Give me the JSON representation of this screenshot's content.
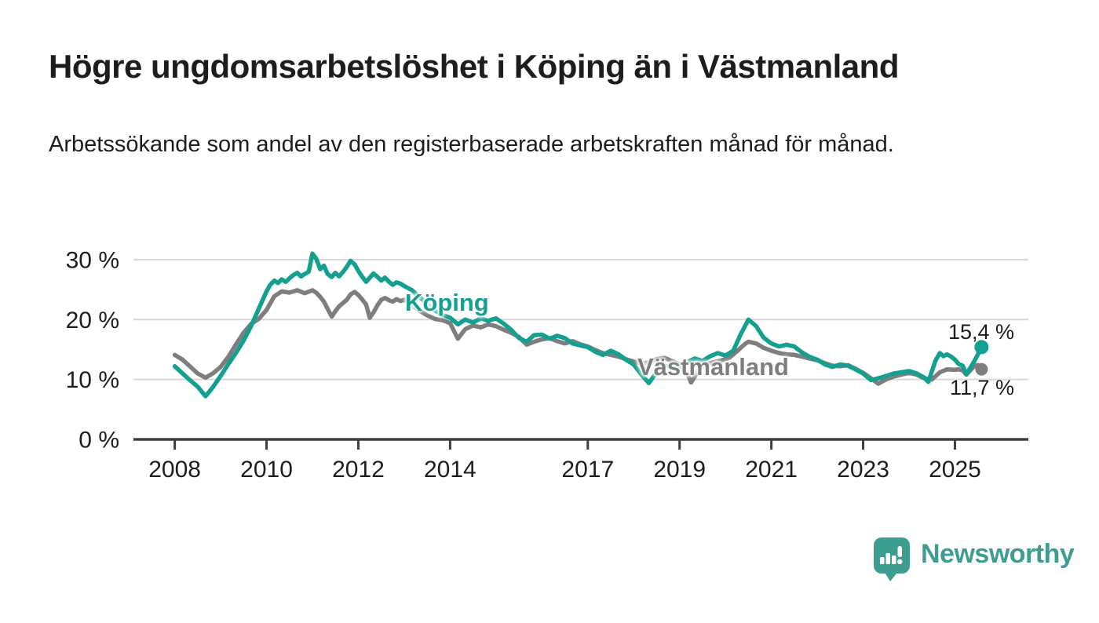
{
  "title": "Högre ungdomsarbetslöshet i Köping än i Västmanland",
  "subtitle": "Arbetssökande som andel av den registerbaserade arbetskraften månad för månad.",
  "logo": {
    "text": "Newsworthy"
  },
  "chart_data": {
    "type": "line",
    "unit": "%",
    "title": "Högre ungdomsarbetslöshet i Köping än i Västmanland",
    "xlabel": "",
    "ylabel": "Arbetssökande som andel av den registerbaserade arbetskraften",
    "x_axis": {
      "ticks": [
        2008,
        2010,
        2012,
        2014,
        2017,
        2019,
        2021,
        2023,
        2025
      ],
      "xlim": [
        2007.1,
        2026.6
      ]
    },
    "y_axis": {
      "ticks": [
        0,
        10,
        20,
        30
      ],
      "tick_labels": [
        "0 %",
        "10 %",
        "20 %",
        "30 %"
      ],
      "ylim": [
        0,
        33
      ],
      "grid": true
    },
    "legend_position": "inline-labels",
    "colors": {
      "koping": "#14A090",
      "vastmanland": "#7E7E7E",
      "grid": "#D8D8D8",
      "axis": "#3F3F3F",
      "ink": "#1D1D1D",
      "logo_teal": "#3D9D90"
    },
    "series": [
      {
        "name": "Västmanland",
        "color_key": "vastmanland",
        "end_label": "11,7 %",
        "last_value": 11.7,
        "points": [
          [
            2008.0,
            14.1
          ],
          [
            2008.17,
            13.3
          ],
          [
            2008.33,
            12.2
          ],
          [
            2008.5,
            11.0
          ],
          [
            2008.67,
            10.3
          ],
          [
            2008.83,
            11.0
          ],
          [
            2009.0,
            12.1
          ],
          [
            2009.17,
            13.8
          ],
          [
            2009.33,
            15.8
          ],
          [
            2009.5,
            17.8
          ],
          [
            2009.67,
            19.3
          ],
          [
            2009.83,
            20.1
          ],
          [
            2010.0,
            21.6
          ],
          [
            2010.17,
            23.9
          ],
          [
            2010.33,
            24.7
          ],
          [
            2010.5,
            24.5
          ],
          [
            2010.67,
            24.9
          ],
          [
            2010.83,
            24.4
          ],
          [
            2011.0,
            24.9
          ],
          [
            2011.08,
            24.5
          ],
          [
            2011.17,
            23.8
          ],
          [
            2011.25,
            23.0
          ],
          [
            2011.33,
            21.8
          ],
          [
            2011.42,
            20.5
          ],
          [
            2011.5,
            21.4
          ],
          [
            2011.58,
            22.2
          ],
          [
            2011.67,
            22.8
          ],
          [
            2011.75,
            23.3
          ],
          [
            2011.83,
            24.2
          ],
          [
            2011.92,
            24.6
          ],
          [
            2012.0,
            24.1
          ],
          [
            2012.08,
            23.4
          ],
          [
            2012.17,
            22.5
          ],
          [
            2012.25,
            20.3
          ],
          [
            2012.33,
            21.2
          ],
          [
            2012.42,
            22.4
          ],
          [
            2012.5,
            23.3
          ],
          [
            2012.58,
            23.6
          ],
          [
            2012.67,
            23.2
          ],
          [
            2012.75,
            23.0
          ],
          [
            2012.83,
            23.4
          ],
          [
            2012.92,
            23.1
          ],
          [
            2013.0,
            23.3
          ],
          [
            2013.17,
            22.4
          ],
          [
            2013.33,
            21.5
          ],
          [
            2013.5,
            20.7
          ],
          [
            2013.67,
            20.1
          ],
          [
            2013.83,
            19.9
          ],
          [
            2014.0,
            19.4
          ],
          [
            2014.17,
            16.8
          ],
          [
            2014.33,
            18.4
          ],
          [
            2014.5,
            19.0
          ],
          [
            2014.67,
            18.7
          ],
          [
            2014.83,
            19.2
          ],
          [
            2015.0,
            18.9
          ],
          [
            2015.17,
            18.3
          ],
          [
            2015.33,
            17.8
          ],
          [
            2015.5,
            17.1
          ],
          [
            2015.67,
            15.8
          ],
          [
            2015.83,
            16.3
          ],
          [
            2016.0,
            16.7
          ],
          [
            2016.17,
            16.9
          ],
          [
            2016.33,
            16.4
          ],
          [
            2016.5,
            16.0
          ],
          [
            2016.67,
            16.4
          ],
          [
            2016.83,
            15.9
          ],
          [
            2017.0,
            15.5
          ],
          [
            2017.17,
            14.9
          ],
          [
            2017.33,
            14.4
          ],
          [
            2017.5,
            14.1
          ],
          [
            2017.67,
            13.8
          ],
          [
            2017.83,
            13.4
          ],
          [
            2018.0,
            13.0
          ],
          [
            2018.17,
            12.6
          ],
          [
            2018.33,
            12.9
          ],
          [
            2018.5,
            13.4
          ],
          [
            2018.67,
            13.6
          ],
          [
            2018.83,
            13.1
          ],
          [
            2019.0,
            12.5
          ],
          [
            2019.17,
            11.0
          ],
          [
            2019.25,
            9.5
          ],
          [
            2019.42,
            11.6
          ],
          [
            2019.58,
            12.5
          ],
          [
            2019.75,
            12.9
          ],
          [
            2019.92,
            13.2
          ],
          [
            2020.08,
            13.6
          ],
          [
            2020.25,
            14.7
          ],
          [
            2020.42,
            15.9
          ],
          [
            2020.5,
            16.3
          ],
          [
            2020.67,
            16.0
          ],
          [
            2020.83,
            15.3
          ],
          [
            2021.0,
            14.8
          ],
          [
            2021.17,
            14.4
          ],
          [
            2021.33,
            14.2
          ],
          [
            2021.5,
            14.1
          ],
          [
            2021.67,
            13.8
          ],
          [
            2021.83,
            13.5
          ],
          [
            2022.0,
            13.2
          ],
          [
            2022.17,
            12.7
          ],
          [
            2022.33,
            12.3
          ],
          [
            2022.5,
            12.2
          ],
          [
            2022.67,
            12.4
          ],
          [
            2022.83,
            11.8
          ],
          [
            2023.0,
            11.1
          ],
          [
            2023.17,
            10.2
          ],
          [
            2023.33,
            9.3
          ],
          [
            2023.5,
            10.0
          ],
          [
            2023.67,
            10.5
          ],
          [
            2023.83,
            10.8
          ],
          [
            2024.0,
            11.1
          ],
          [
            2024.17,
            10.8
          ],
          [
            2024.33,
            10.2
          ],
          [
            2024.5,
            10.0
          ],
          [
            2024.67,
            11.2
          ],
          [
            2024.83,
            11.7
          ],
          [
            2025.0,
            11.6
          ],
          [
            2025.08,
            11.7
          ],
          [
            2025.17,
            11.5
          ],
          [
            2025.25,
            10.8
          ],
          [
            2025.42,
            12.2
          ],
          [
            2025.5,
            12.4
          ],
          [
            2025.58,
            11.7
          ]
        ]
      },
      {
        "name": "Köping",
        "color_key": "koping",
        "end_label": "15,4 %",
        "last_value": 15.4,
        "points": [
          [
            2008.0,
            12.2
          ],
          [
            2008.17,
            11.0
          ],
          [
            2008.33,
            9.9
          ],
          [
            2008.5,
            8.8
          ],
          [
            2008.67,
            7.2
          ],
          [
            2008.83,
            8.7
          ],
          [
            2009.0,
            10.6
          ],
          [
            2009.17,
            12.6
          ],
          [
            2009.33,
            14.4
          ],
          [
            2009.5,
            16.5
          ],
          [
            2009.67,
            19.0
          ],
          [
            2009.83,
            21.8
          ],
          [
            2010.0,
            24.7
          ],
          [
            2010.08,
            25.8
          ],
          [
            2010.17,
            26.5
          ],
          [
            2010.25,
            26.1
          ],
          [
            2010.33,
            26.7
          ],
          [
            2010.42,
            26.3
          ],
          [
            2010.5,
            26.9
          ],
          [
            2010.58,
            27.4
          ],
          [
            2010.67,
            27.8
          ],
          [
            2010.75,
            27.2
          ],
          [
            2010.83,
            27.6
          ],
          [
            2010.92,
            28.0
          ],
          [
            2011.0,
            31.0
          ],
          [
            2011.08,
            30.2
          ],
          [
            2011.17,
            28.4
          ],
          [
            2011.25,
            29.0
          ],
          [
            2011.33,
            27.6
          ],
          [
            2011.42,
            27.1
          ],
          [
            2011.5,
            27.8
          ],
          [
            2011.58,
            27.2
          ],
          [
            2011.67,
            28.0
          ],
          [
            2011.75,
            28.8
          ],
          [
            2011.83,
            29.8
          ],
          [
            2011.92,
            29.2
          ],
          [
            2012.0,
            28.1
          ],
          [
            2012.08,
            27.2
          ],
          [
            2012.17,
            26.3
          ],
          [
            2012.25,
            27.0
          ],
          [
            2012.33,
            27.7
          ],
          [
            2012.42,
            27.1
          ],
          [
            2012.5,
            26.5
          ],
          [
            2012.58,
            27.0
          ],
          [
            2012.67,
            26.3
          ],
          [
            2012.75,
            25.8
          ],
          [
            2012.83,
            26.2
          ],
          [
            2012.92,
            26.0
          ],
          [
            2013.0,
            25.6
          ],
          [
            2013.17,
            24.9
          ],
          [
            2013.33,
            23.8
          ],
          [
            2013.5,
            22.6
          ],
          [
            2013.67,
            21.5
          ],
          [
            2013.83,
            20.8
          ],
          [
            2014.0,
            20.3
          ],
          [
            2014.17,
            19.2
          ],
          [
            2014.33,
            20.0
          ],
          [
            2014.5,
            19.5
          ],
          [
            2014.67,
            20.2
          ],
          [
            2014.83,
            19.8
          ],
          [
            2015.0,
            20.2
          ],
          [
            2015.17,
            19.3
          ],
          [
            2015.33,
            18.3
          ],
          [
            2015.5,
            16.9
          ],
          [
            2015.67,
            16.3
          ],
          [
            2015.83,
            17.4
          ],
          [
            2016.0,
            17.5
          ],
          [
            2016.17,
            16.8
          ],
          [
            2016.33,
            17.3
          ],
          [
            2016.5,
            16.9
          ],
          [
            2016.67,
            16.0
          ],
          [
            2016.83,
            15.7
          ],
          [
            2017.0,
            15.4
          ],
          [
            2017.17,
            14.6
          ],
          [
            2017.33,
            14.1
          ],
          [
            2017.5,
            14.8
          ],
          [
            2017.67,
            14.2
          ],
          [
            2017.83,
            13.3
          ],
          [
            2018.0,
            12.5
          ],
          [
            2018.17,
            10.8
          ],
          [
            2018.33,
            9.4
          ],
          [
            2018.5,
            11.2
          ],
          [
            2018.67,
            12.1
          ],
          [
            2018.83,
            12.4
          ],
          [
            2019.0,
            12.2
          ],
          [
            2019.17,
            12.9
          ],
          [
            2019.33,
            13.5
          ],
          [
            2019.5,
            13.1
          ],
          [
            2019.67,
            13.9
          ],
          [
            2019.83,
            14.4
          ],
          [
            2020.0,
            14.0
          ],
          [
            2020.17,
            14.8
          ],
          [
            2020.33,
            17.5
          ],
          [
            2020.5,
            20.0
          ],
          [
            2020.67,
            18.9
          ],
          [
            2020.83,
            17.0
          ],
          [
            2021.0,
            16.0
          ],
          [
            2021.17,
            15.5
          ],
          [
            2021.33,
            15.8
          ],
          [
            2021.5,
            15.5
          ],
          [
            2021.67,
            14.5
          ],
          [
            2021.83,
            13.8
          ],
          [
            2022.0,
            13.3
          ],
          [
            2022.17,
            12.5
          ],
          [
            2022.33,
            12.1
          ],
          [
            2022.5,
            12.5
          ],
          [
            2022.67,
            12.3
          ],
          [
            2022.83,
            11.7
          ],
          [
            2023.0,
            11.0
          ],
          [
            2023.17,
            9.9
          ],
          [
            2023.33,
            10.2
          ],
          [
            2023.5,
            10.6
          ],
          [
            2023.67,
            11.0
          ],
          [
            2023.83,
            11.2
          ],
          [
            2024.0,
            11.4
          ],
          [
            2024.17,
            11.0
          ],
          [
            2024.33,
            10.3
          ],
          [
            2024.42,
            9.6
          ],
          [
            2024.5,
            11.4
          ],
          [
            2024.58,
            13.2
          ],
          [
            2024.67,
            14.4
          ],
          [
            2024.75,
            13.9
          ],
          [
            2024.83,
            14.2
          ],
          [
            2024.92,
            13.8
          ],
          [
            2025.0,
            13.3
          ],
          [
            2025.08,
            12.6
          ],
          [
            2025.17,
            12.3
          ],
          [
            2025.25,
            10.9
          ],
          [
            2025.42,
            13.0
          ],
          [
            2025.58,
            15.4
          ]
        ]
      }
    ]
  }
}
